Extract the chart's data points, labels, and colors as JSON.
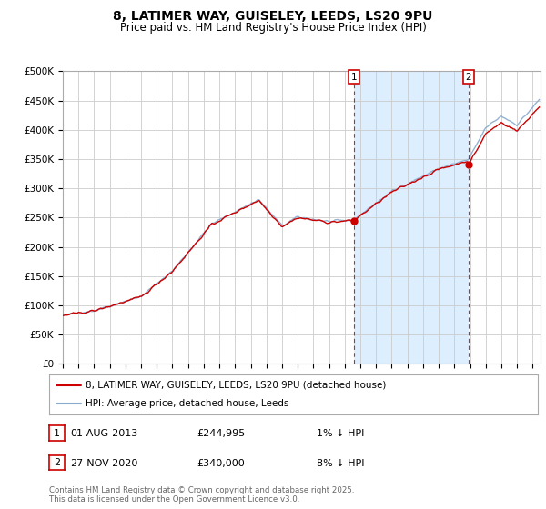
{
  "title": "8, LATIMER WAY, GUISELEY, LEEDS, LS20 9PU",
  "subtitle": "Price paid vs. HM Land Registry's House Price Index (HPI)",
  "ylabel_ticks": [
    "£0",
    "£50K",
    "£100K",
    "£150K",
    "£200K",
    "£250K",
    "£300K",
    "£350K",
    "£400K",
    "£450K",
    "£500K"
  ],
  "ytick_values": [
    0,
    50000,
    100000,
    150000,
    200000,
    250000,
    300000,
    350000,
    400000,
    450000,
    500000
  ],
  "ylim": [
    0,
    500000
  ],
  "xlim_start": 1995.0,
  "xlim_end": 2025.5,
  "bg_color": "#ffffff",
  "plot_bg": "#ffffff",
  "shade_color": "#ddeeff",
  "red_line_color": "#cc0000",
  "blue_line_color": "#88aacc",
  "marker1_date": 2013.58,
  "marker1_value": 244995,
  "marker1_label": "01-AUG-2013",
  "marker1_price": "£244,995",
  "marker1_note": "1% ↓ HPI",
  "marker2_date": 2020.91,
  "marker2_value": 340000,
  "marker2_label": "27-NOV-2020",
  "marker2_price": "£340,000",
  "marker2_note": "8% ↓ HPI",
  "legend_line1": "8, LATIMER WAY, GUISELEY, LEEDS, LS20 9PU (detached house)",
  "legend_line2": "HPI: Average price, detached house, Leeds",
  "footer": "Contains HM Land Registry data © Crown copyright and database right 2025.\nThis data is licensed under the Open Government Licence v3.0.",
  "annotation1": "1",
  "annotation2": "2"
}
